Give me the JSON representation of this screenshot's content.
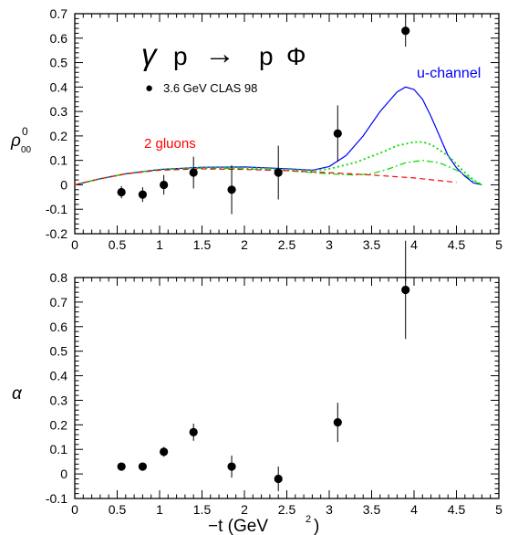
{
  "chart_data": [
    {
      "type": "scatter",
      "xlim": [
        0,
        5
      ],
      "ylim": [
        -0.2,
        0.7
      ],
      "x_ticks": [
        0,
        0.5,
        1,
        1.5,
        2,
        2.5,
        3,
        3.5,
        4,
        4.5,
        5
      ],
      "x_tick_labels": [
        "0",
        "0.5",
        "1",
        "1.5",
        "2",
        "2.5",
        "3",
        "3.5",
        "4",
        "4.5",
        "5"
      ],
      "y_ticks": [
        -0.2,
        -0.1,
        0,
        0.1,
        0.2,
        0.3,
        0.4,
        0.5,
        0.6,
        0.7
      ],
      "y_tick_labels": [
        "-0.2",
        "-0.1",
        "0",
        "0.1",
        "0.2",
        "0.3",
        "0.4",
        "0.5",
        "0.6",
        "0.7"
      ],
      "ylabel_base": "ρ",
      "ylabel_sup": "0",
      "ylabel_sub": "00",
      "reaction": {
        "gamma": "γ",
        "p1": "p",
        "arrow": "→",
        "p2": "p",
        "phi": "Φ"
      },
      "legend": {
        "marker": "●",
        "label": "3.6 GeV  CLAS 98",
        "placement": "upper-left"
      },
      "annotations": [
        {
          "text": "u-channel",
          "color": "#0000ff"
        },
        {
          "text": "2 gluons",
          "color": "#ff0000"
        }
      ],
      "points": [
        {
          "x": 0.55,
          "y": -0.03,
          "err": 0.025
        },
        {
          "x": 0.8,
          "y": -0.04,
          "err": 0.03
        },
        {
          "x": 1.05,
          "y": 0.0,
          "err": 0.04
        },
        {
          "x": 1.4,
          "y": 0.05,
          "err": 0.065
        },
        {
          "x": 1.85,
          "y": -0.02,
          "err": 0.1
        },
        {
          "x": 2.4,
          "y": 0.05,
          "err": 0.11
        },
        {
          "x": 3.1,
          "y": 0.21,
          "err": 0.115
        },
        {
          "x": 3.9,
          "y": 0.63,
          "err": 0.065
        }
      ],
      "curves": [
        {
          "style": "solid",
          "color": "#0000ff",
          "x": [
            0,
            0.3,
            0.6,
            1.0,
            1.5,
            2.0,
            2.5,
            2.8,
            3.0,
            3.2,
            3.4,
            3.6,
            3.8,
            3.9,
            4.0,
            4.1,
            4.2,
            4.3,
            4.4,
            4.5,
            4.6,
            4.7,
            4.8
          ],
          "y": [
            0.0,
            0.025,
            0.045,
            0.063,
            0.072,
            0.073,
            0.066,
            0.06,
            0.075,
            0.12,
            0.2,
            0.3,
            0.38,
            0.4,
            0.39,
            0.35,
            0.28,
            0.2,
            0.12,
            0.07,
            0.035,
            0.008,
            0.0
          ]
        },
        {
          "style": "dotted",
          "color": "#00dd00",
          "x": [
            0,
            0.3,
            0.6,
            1.0,
            1.5,
            2.0,
            2.5,
            2.8,
            3.0,
            3.3,
            3.6,
            3.8,
            4.0,
            4.1,
            4.2,
            4.4,
            4.5,
            4.6,
            4.7,
            4.8
          ],
          "y": [
            0.0,
            0.025,
            0.045,
            0.062,
            0.07,
            0.07,
            0.063,
            0.058,
            0.065,
            0.09,
            0.13,
            0.16,
            0.175,
            0.175,
            0.165,
            0.12,
            0.085,
            0.05,
            0.02,
            0.0
          ]
        },
        {
          "style": "dashdot",
          "color": "#00dd00",
          "x": [
            0,
            0.3,
            0.6,
            1.0,
            1.5,
            2.0,
            2.5,
            2.8,
            3.0,
            3.3,
            3.5,
            3.7,
            3.9,
            4.1,
            4.3,
            4.5,
            4.6,
            4.7,
            4.8
          ],
          "y": [
            0.0,
            0.025,
            0.045,
            0.062,
            0.068,
            0.066,
            0.058,
            0.05,
            0.045,
            0.04,
            0.045,
            0.065,
            0.09,
            0.1,
            0.09,
            0.06,
            0.04,
            0.015,
            0.0
          ]
        },
        {
          "style": "dashed",
          "color": "#ff0000",
          "x": [
            0,
            0.3,
            0.6,
            1.0,
            1.5,
            2.0,
            2.5,
            3.0,
            3.5,
            4.0,
            4.5
          ],
          "y": [
            0.0,
            0.025,
            0.045,
            0.06,
            0.065,
            0.063,
            0.058,
            0.05,
            0.04,
            0.028,
            0.01
          ]
        }
      ]
    },
    {
      "type": "scatter",
      "xlim": [
        0,
        5
      ],
      "ylim": [
        -0.1,
        0.8
      ],
      "x_ticks": [
        0,
        0.5,
        1,
        1.5,
        2,
        2.5,
        3,
        3.5,
        4,
        4.5,
        5
      ],
      "x_tick_labels": [
        "0",
        "0.5",
        "1",
        "1.5",
        "2",
        "2.5",
        "3",
        "3.5",
        "4",
        "4.5",
        "5"
      ],
      "y_ticks": [
        -0.1,
        0,
        0.1,
        0.2,
        0.3,
        0.4,
        0.5,
        0.6,
        0.7,
        0.8
      ],
      "y_tick_labels": [
        "-0.1",
        "0",
        "0.1",
        "0.2",
        "0.3",
        "0.4",
        "0.5",
        "0.6",
        "0.7",
        "0.8"
      ],
      "ylabel": "α",
      "xlabel_pre": "−t  (GeV",
      "xlabel_sup": "2",
      "xlabel_post": ")",
      "points": [
        {
          "x": 0.55,
          "y": 0.03,
          "err": 0.0
        },
        {
          "x": 0.8,
          "y": 0.03,
          "err": 0.0
        },
        {
          "x": 1.05,
          "y": 0.09,
          "err": 0.02
        },
        {
          "x": 1.4,
          "y": 0.17,
          "err": 0.035
        },
        {
          "x": 1.85,
          "y": 0.03,
          "err": 0.045
        },
        {
          "x": 2.4,
          "y": -0.02,
          "err": 0.05
        },
        {
          "x": 3.1,
          "y": 0.21,
          "err": 0.08
        },
        {
          "x": 3.9,
          "y": 0.75,
          "err": 0.2
        }
      ]
    }
  ]
}
